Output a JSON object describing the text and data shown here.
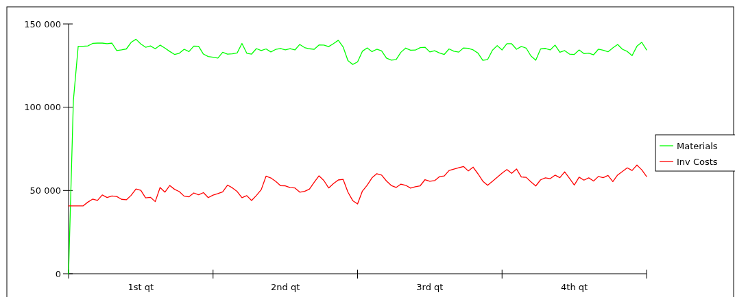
{
  "chart_data": {
    "type": "line",
    "categories": [
      null,
      null,
      null,
      null,
      null,
      null,
      null,
      null,
      null,
      null,
      null,
      null,
      null,
      null,
      null,
      "1st qt",
      null,
      null,
      null,
      null,
      null,
      null,
      null,
      null,
      null,
      null,
      null,
      null,
      null,
      null,
      null,
      null,
      null,
      null,
      null,
      null,
      null,
      null,
      null,
      null,
      null,
      null,
      null,
      null,
      null,
      "2nd qt",
      null,
      null,
      null,
      null,
      null,
      null,
      null,
      null,
      null,
      null,
      null,
      null,
      null,
      null,
      null,
      null,
      null,
      null,
      null,
      null,
      null,
      null,
      null,
      null,
      null,
      null,
      null,
      null,
      null,
      "3rd qt",
      null,
      null,
      null,
      null,
      null,
      null,
      null,
      null,
      null,
      null,
      null,
      null,
      null,
      null,
      null,
      null,
      null,
      null,
      null,
      null,
      null,
      null,
      null,
      null,
      null,
      null,
      null,
      null,
      null,
      "4th qt",
      null,
      null,
      null,
      null,
      null,
      null,
      null,
      null,
      null,
      null,
      null,
      null,
      null,
      null,
      null
    ],
    "ylim": [
      0,
      150000
    ],
    "yticks": [
      0,
      {
        "value": 50000,
        "label": "50 000"
      },
      {
        "value": 100000,
        "label": "100 000"
      },
      {
        "value": 150000,
        "label": "150 000"
      }
    ],
    "legend": "right",
    "marker": "none",
    "line_style": "solid",
    "series": [
      {
        "name": "Materials",
        "color": "#00ff00",
        "values": [
          0,
          104000,
          136600,
          136600,
          136800,
          138300,
          138500,
          138500,
          138100,
          138500,
          134000,
          134400,
          135000,
          139000,
          140800,
          138000,
          136000,
          136800,
          135100,
          137300,
          135500,
          133500,
          131700,
          132400,
          134800,
          133400,
          136700,
          136600,
          131900,
          130400,
          130000,
          129500,
          133000,
          131900,
          132100,
          132600,
          138300,
          132400,
          131900,
          135200,
          134000,
          135000,
          133200,
          134700,
          135300,
          134400,
          135200,
          134400,
          137700,
          135800,
          135100,
          134800,
          137400,
          137300,
          136400,
          138200,
          140200,
          136200,
          128000,
          125700,
          127200,
          133600,
          135600,
          133400,
          134800,
          133800,
          129500,
          128300,
          128600,
          133000,
          135500,
          134200,
          134300,
          135800,
          136000,
          133200,
          133900,
          132600,
          131700,
          135000,
          133600,
          133100,
          135600,
          135400,
          134400,
          132500,
          128200,
          128600,
          134200,
          137000,
          134400,
          138100,
          138100,
          134800,
          136500,
          135500,
          130800,
          128200,
          135000,
          135300,
          134400,
          137300,
          133000,
          134000,
          131900,
          131700,
          134400,
          132200,
          132500,
          131500,
          134800,
          134200,
          133300,
          135600,
          137700,
          134800,
          133500,
          131000,
          136600,
          139000,
          134400
        ]
      },
      {
        "name": "Inv Costs",
        "color": "#ff0000",
        "values": [
          40700,
          40700,
          40700,
          40700,
          43000,
          44800,
          44000,
          47300,
          45800,
          46700,
          46400,
          44700,
          44400,
          47100,
          50900,
          50100,
          45600,
          45900,
          43300,
          51800,
          49000,
          53000,
          50700,
          49300,
          46600,
          46200,
          48500,
          47400,
          48700,
          45700,
          47200,
          48100,
          49200,
          53200,
          51600,
          49400,
          45700,
          46900,
          44000,
          47000,
          50500,
          58600,
          57500,
          55500,
          52900,
          52800,
          51700,
          51500,
          49000,
          49500,
          50800,
          54900,
          58800,
          56000,
          51500,
          54100,
          56300,
          56700,
          49000,
          43900,
          41900,
          49600,
          53200,
          57600,
          60100,
          59200,
          55700,
          53000,
          51800,
          53800,
          53100,
          51400,
          52200,
          52800,
          56500,
          55500,
          55900,
          58300,
          58700,
          62000,
          62800,
          63600,
          64400,
          61700,
          64000,
          60000,
          55600,
          53100,
          55500,
          57900,
          60400,
          62600,
          60300,
          62900,
          58100,
          57900,
          55200,
          52700,
          56400,
          57600,
          57100,
          59200,
          57700,
          61200,
          57300,
          53300,
          58000,
          56200,
          57600,
          55700,
          58400,
          57700,
          59000,
          55300,
          59300,
          61400,
          63600,
          62000,
          65300,
          62400,
          58400
        ]
      }
    ]
  }
}
